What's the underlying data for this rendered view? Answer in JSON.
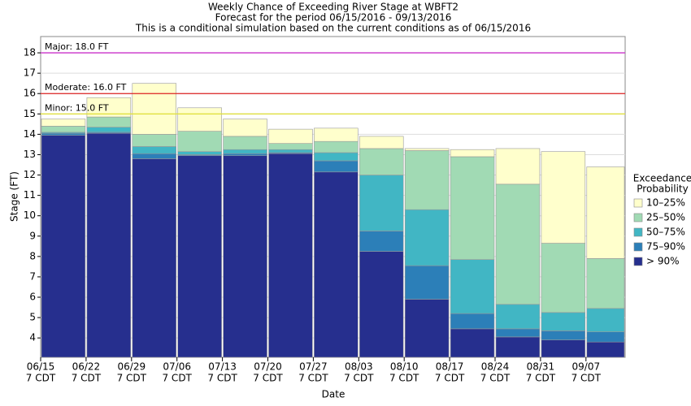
{
  "chart_data": {
    "type": "range_bar",
    "title": [
      "Weekly Chance of Exceeding River Stage at WBFT2",
      "Forecast for the period 06/15/2016 - 09/13/2016",
      "This is a conditional simulation based on the current conditions as of 06/15/2016"
    ],
    "x_label": "Date",
    "y_label": "Stage (FT)",
    "categories": [
      [
        "06/15",
        "7 CDT"
      ],
      [
        "06/22",
        "7 CDT"
      ],
      [
        "06/29",
        "7 CDT"
      ],
      [
        "07/06",
        "7 CDT"
      ],
      [
        "07/13",
        "7 CDT"
      ],
      [
        "07/20",
        "7 CDT"
      ],
      [
        "07/27",
        "7 CDT"
      ],
      [
        "08/03",
        "7 CDT"
      ],
      [
        "08/10",
        "7 CDT"
      ],
      [
        "08/17",
        "7 CDT"
      ],
      [
        "08/24",
        "7 CDT"
      ],
      [
        "08/31",
        "7 CDT"
      ],
      [
        "09/07",
        "7 CDT"
      ]
    ],
    "series": [
      {
        "name": "> 90%",
        "color": "#262f8e",
        "values": [
          13.95,
          14.05,
          12.8,
          12.95,
          12.95,
          13.05,
          12.15,
          8.25,
          5.9,
          4.45,
          4.05,
          3.9,
          3.8
        ]
      },
      {
        "name": "75–90%",
        "color": "#2c7fb8",
        "values": [
          14.05,
          14.1,
          13.05,
          13.0,
          13.05,
          13.1,
          12.7,
          9.25,
          7.55,
          5.2,
          4.45,
          4.35,
          4.3
        ]
      },
      {
        "name": "50–75%",
        "color": "#41b6c4",
        "values": [
          14.1,
          14.35,
          13.4,
          13.15,
          13.25,
          13.25,
          13.1,
          12.0,
          10.3,
          7.85,
          5.65,
          5.25,
          5.45
        ]
      },
      {
        "name": "25–50%",
        "color": "#a1dab4",
        "values": [
          14.4,
          14.85,
          14.0,
          14.15,
          13.9,
          13.55,
          13.65,
          13.3,
          13.2,
          12.9,
          11.55,
          8.65,
          7.9
        ]
      },
      {
        "name": "10–25%",
        "color": "#ffffcc",
        "values": [
          14.75,
          15.8,
          16.5,
          15.3,
          14.75,
          14.25,
          14.3,
          13.9,
          13.3,
          13.25,
          13.3,
          13.15,
          12.4
        ]
      }
    ],
    "legend_title": [
      "Exceedance",
      "Probability"
    ],
    "thresholds": [
      {
        "label": "Major: 18.0 FT",
        "value": 18,
        "color": "#cc33cc"
      },
      {
        "label": "Moderate: 16.0 FT",
        "value": 16,
        "color": "#dd2222"
      },
      {
        "label": "Minor: 15.0 FT",
        "value": 15,
        "color": "#e0e040"
      }
    ],
    "ylim": [
      3.05,
      18.8
    ],
    "yticks": [
      4,
      5,
      6,
      7,
      8,
      9,
      10,
      11,
      12,
      13,
      14,
      15,
      16,
      17,
      18
    ],
    "grid": true
  }
}
